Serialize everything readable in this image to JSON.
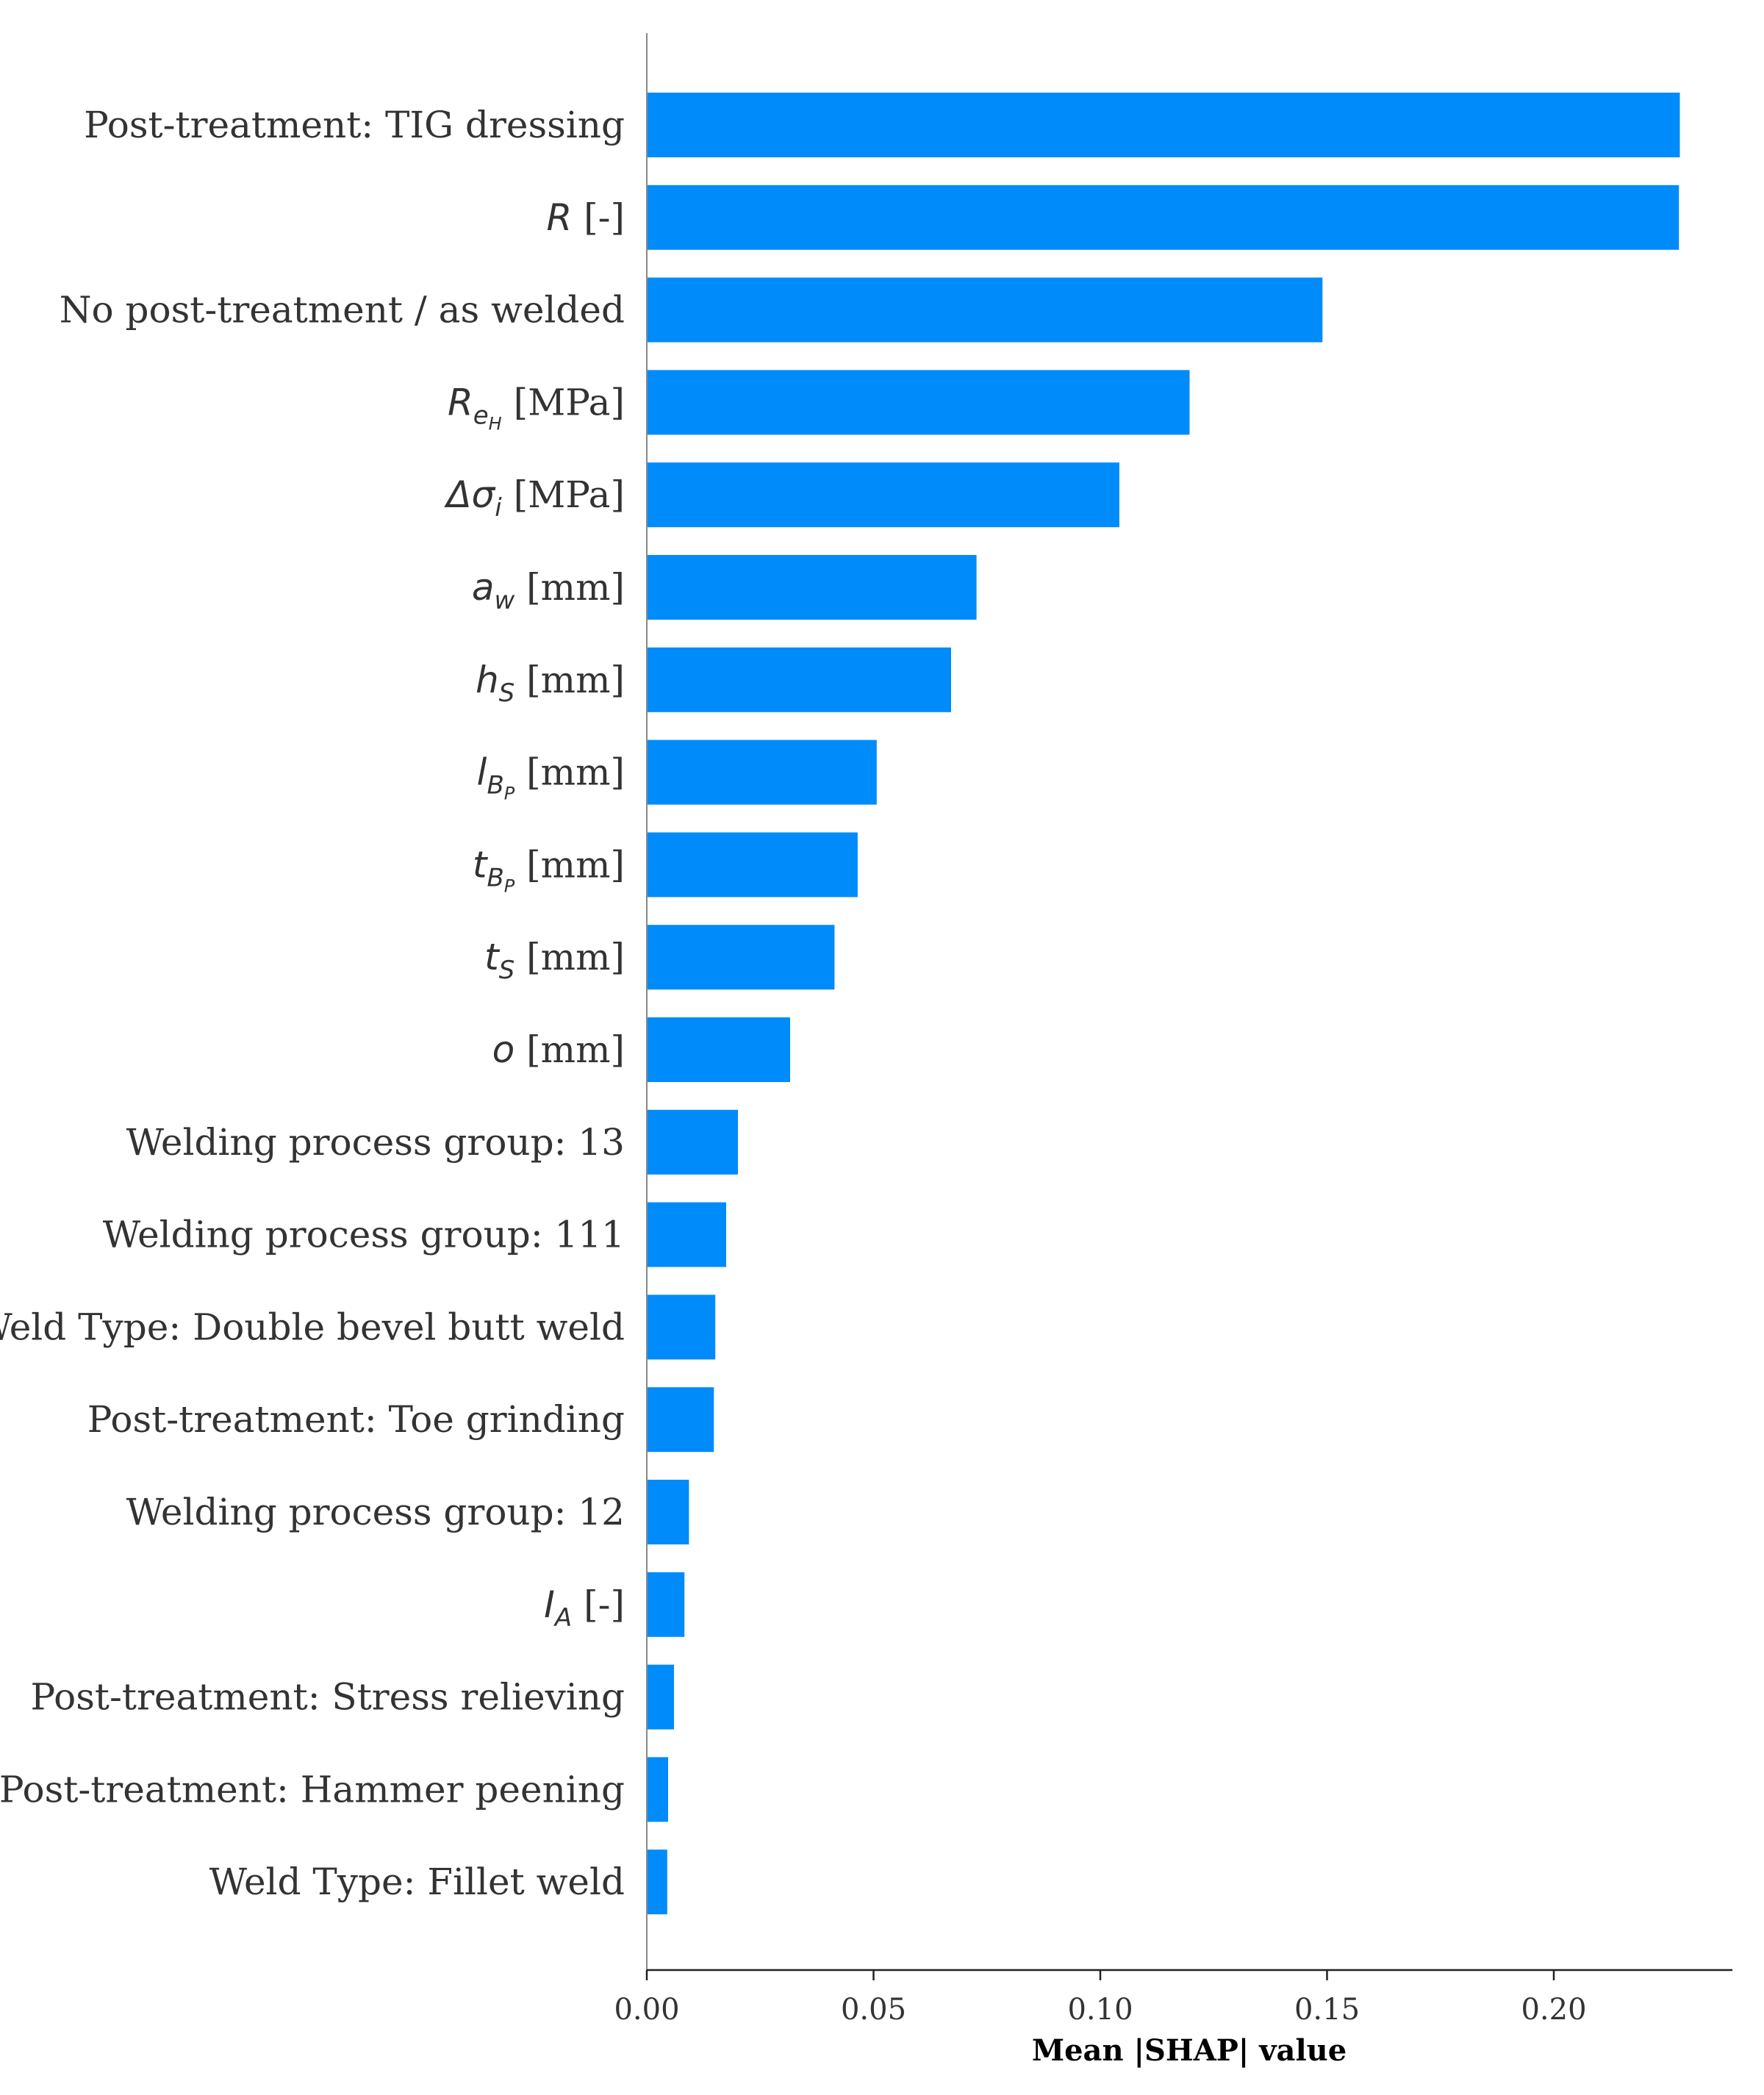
{
  "chart_data": {
    "type": "bar",
    "orientation": "horizontal",
    "xlabel": "Mean |SHAP| value",
    "ylabel": "",
    "xlim": [
      0,
      0.24
    ],
    "xticks": [
      0.0,
      0.05,
      0.1,
      0.15,
      0.2
    ],
    "xtick_labels": [
      "0.00",
      "0.05",
      "0.10",
      "0.15",
      "0.20"
    ],
    "grid": false,
    "bar_color": "#008bfb",
    "categories": [
      "Post-treatment: TIG dressing",
      "R [-]",
      "No post-treatment / as welded",
      "R_eH [MPa]",
      "Δσ_i [MPa]",
      "a_w [mm]",
      "h_S [mm]",
      "l_BP [mm]",
      "t_BP [mm]",
      "t_S [mm]",
      "o [mm]",
      "Welding process group: 13",
      "Welding process group: 111",
      "Weld Type: Double bevel butt weld",
      "Post-treatment: Toe grinding",
      "Welding process group: 12",
      "I_A [-]",
      "Post-treatment: Stress relieving",
      "Post-treatment: Hammer peening",
      "Weld Type: Fillet weld"
    ],
    "category_display": [
      {
        "plain": "Post-treatment: TIG dressing"
      },
      {
        "sym": "R",
        "sub": "",
        "subsub": "",
        "unit": " [-]"
      },
      {
        "plain": "No post-treatment / as welded"
      },
      {
        "sym": "R",
        "sub": "e",
        "subsub": "H",
        "unit": " [MPa]"
      },
      {
        "sym": "Δσ",
        "sub": "i",
        "subsub": "",
        "unit": " [MPa]"
      },
      {
        "sym": "a",
        "sub": "w",
        "subsub": "",
        "unit": " [mm]"
      },
      {
        "sym": "h",
        "sub": "S",
        "subsub": "",
        "unit": " [mm]"
      },
      {
        "sym": "l",
        "sub": "B",
        "subsub": "P",
        "unit": " [mm]"
      },
      {
        "sym": "t",
        "sub": "B",
        "subsub": "P",
        "unit": " [mm]"
      },
      {
        "sym": "t",
        "sub": "S",
        "subsub": "",
        "unit": " [mm]"
      },
      {
        "sym": "o",
        "sub": "",
        "subsub": "",
        "unit": " [mm]"
      },
      {
        "plain": "Welding process group: 13"
      },
      {
        "plain": "Welding process group: 111"
      },
      {
        "plain": "Weld Type: Double bevel butt weld"
      },
      {
        "plain": "Post-treatment: Toe grinding"
      },
      {
        "plain": "Welding process group: 12"
      },
      {
        "sym": "I",
        "sub": "A",
        "subsub": "",
        "unit": " [-]"
      },
      {
        "plain": "Post-treatment: Stress relieving"
      },
      {
        "plain": "Post-treatment: Hammer peening"
      },
      {
        "plain": "Weld Type: Fillet weld"
      }
    ],
    "values": [
      0.2278,
      0.2276,
      0.149,
      0.1197,
      0.1042,
      0.0727,
      0.0671,
      0.0507,
      0.0465,
      0.0414,
      0.0316,
      0.0201,
      0.0175,
      0.0151,
      0.0148,
      0.0093,
      0.0083,
      0.006,
      0.0047,
      0.0045
    ]
  }
}
